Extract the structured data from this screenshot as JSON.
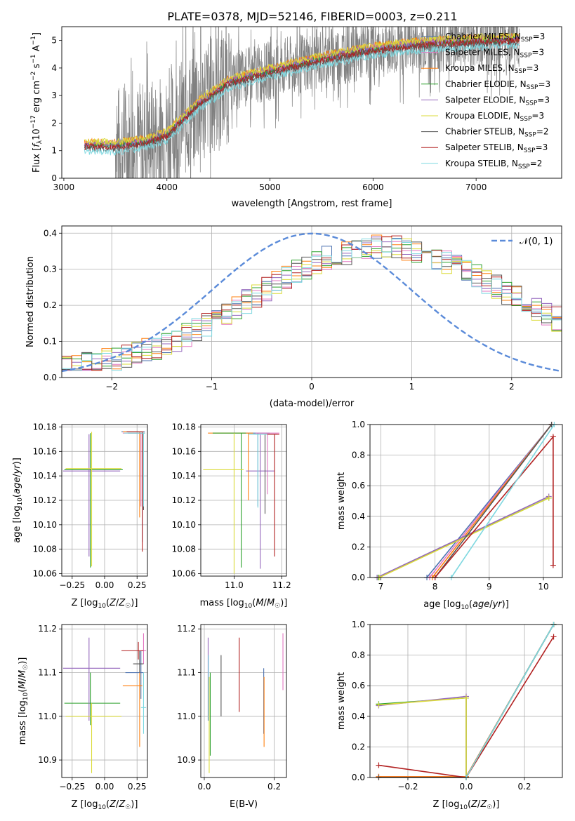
{
  "figure_title": "PLATE=0378, MJD=52146, FIBERID=0003, z=0.211",
  "colors": {
    "Chabrier MILES": "#4c72b0",
    "Salpeter MILES": "#e377c2",
    "Kroupa MILES": "#ff7f0e",
    "Chabrier ELODIE": "#2ca02c",
    "Salpeter ELODIE": "#9467bd",
    "Kroupa ELODIE": "#dbdb3a",
    "Chabrier STELIB": "#555555",
    "Salpeter STELIB": "#b22222",
    "Kroupa STELIB": "#7fd8e0",
    "normal": "#5b8bd9",
    "data": "#808080"
  },
  "chart_data": [
    {
      "id": "spectrum",
      "type": "line",
      "title": "PLATE=0378, MJD=52146, FIBERID=0003, z=0.211",
      "xlabel": "wavelength [Angstrom, rest frame]",
      "ylabel": "Flux [f_λ 10^-17 erg cm^-2 s^-1 A^-1]",
      "xlim": [
        2980,
        7830
      ],
      "ylim": [
        0,
        5.5
      ],
      "xticks": [
        "3000",
        "4000",
        "5000",
        "6000",
        "7000"
      ],
      "yticks": [
        "0",
        "1",
        "2",
        "3",
        "4",
        "5"
      ],
      "legend_position": "top-right",
      "legend": [
        {
          "label": "Chabrier MILES, N",
          "sub": "SSP",
          "suffix": "=3"
        },
        {
          "label": "Salpeter MILES, N",
          "sub": "SSP",
          "suffix": "=3"
        },
        {
          "label": "Kroupa MILES, N",
          "sub": "SSP",
          "suffix": "=3"
        },
        {
          "label": "Chabrier ELODIE, N",
          "sub": "SSP",
          "suffix": "=3"
        },
        {
          "label": "Salpeter ELODIE, N",
          "sub": "SSP",
          "suffix": "=3"
        },
        {
          "label": "Kroupa ELODIE, N",
          "sub": "SSP",
          "suffix": "=3"
        },
        {
          "label": "Chabrier STELIB, N",
          "sub": "SSP",
          "suffix": "=2"
        },
        {
          "label": "Salpeter STELIB, N",
          "sub": "SSP",
          "suffix": "=3"
        },
        {
          "label": "Kroupa STELIB, N",
          "sub": "SSP",
          "suffix": "=2"
        }
      ],
      "data_range": [
        3500,
        7420
      ],
      "model_range": [
        3200,
        7420
      ],
      "continuum": {
        "x": [
          3200,
          3500,
          3800,
          4000,
          4300,
          4600,
          5000,
          5500,
          6000,
          6500,
          7000,
          7400
        ],
        "y": [
          1.2,
          1.2,
          1.35,
          1.6,
          2.7,
          3.5,
          3.9,
          4.35,
          4.7,
          4.9,
          5.0,
          5.05
        ]
      }
    },
    {
      "id": "residuals",
      "type": "line",
      "xlabel": "(data-model)/error",
      "ylabel": "Normed distribution",
      "xlim": [
        -2.5,
        2.5
      ],
      "ylim": [
        0,
        0.42
      ],
      "xticks": [
        "−2",
        "−1",
        "0",
        "1",
        "2"
      ],
      "yticks": [
        "0.0",
        "0.1",
        "0.2",
        "0.3",
        "0.4"
      ],
      "legend_position": "top-right",
      "legend": "𝒩(0, 1)",
      "bins": {
        "start": -2.5,
        "width": 0.1
      },
      "series_envelope": [
        0.033,
        0.035,
        0.038,
        0.042,
        0.046,
        0.052,
        0.058,
        0.066,
        0.075,
        0.084,
        0.094,
        0.105,
        0.117,
        0.13,
        0.145,
        0.16,
        0.176,
        0.193,
        0.21,
        0.228,
        0.245,
        0.262,
        0.278,
        0.293,
        0.307,
        0.32,
        0.331,
        0.34,
        0.348,
        0.354,
        0.358,
        0.36,
        0.36,
        0.358,
        0.355,
        0.35,
        0.343,
        0.334,
        0.323,
        0.311,
        0.298,
        0.283,
        0.268,
        0.252,
        0.236,
        0.22,
        0.205,
        0.19,
        0.176,
        0.162,
        0.15
      ]
    },
    {
      "id": "age-vs-Z",
      "type": "scatter",
      "xlabel": "Z [log10(Z/Z☉)]",
      "ylabel": "age [log10(age/yr)]",
      "xlim": [
        -0.33,
        0.33
      ],
      "ylim": [
        10.058,
        10.182
      ],
      "xticks": [
        "−0.25",
        "0.00",
        "0.25"
      ],
      "yticks": [
        "10.06",
        "10.08",
        "10.10",
        "10.12",
        "10.14",
        "10.16",
        "10.18"
      ],
      "points": [
        {
          "model": "Chabrier MILES",
          "x": 0.29,
          "xerr": [
            0.16,
            0.02
          ],
          "y": 10.176,
          "yerr": [
            0.09,
            0.0
          ]
        },
        {
          "model": "Salpeter MILES",
          "x": 0.28,
          "xerr": [
            0.14,
            0.02
          ],
          "y": 10.175,
          "yerr": [
            0.06,
            0.0
          ]
        },
        {
          "model": "Kroupa MILES",
          "x": 0.27,
          "xerr": [
            0.13,
            0.02
          ],
          "y": 10.176,
          "yerr": [
            0.07,
            0.0
          ]
        },
        {
          "model": "Chabrier ELODIE",
          "x": -0.11,
          "xerr": [
            0.2,
            0.25
          ],
          "y": 10.145,
          "yerr": [
            0.08,
            0.03
          ]
        },
        {
          "model": "Salpeter ELODIE",
          "x": -0.12,
          "xerr": [
            0.2,
            0.24
          ],
          "y": 10.144,
          "yerr": [
            0.07,
            0.03
          ]
        },
        {
          "model": "Kroupa ELODIE",
          "x": -0.1,
          "xerr": [
            0.2,
            0.23
          ],
          "y": 10.146,
          "yerr": [
            0.08,
            0.03
          ]
        },
        {
          "model": "Chabrier STELIB",
          "x": 0.3,
          "xerr": [
            0.12,
            0.01
          ],
          "y": 10.175,
          "yerr": [
            0.063,
            0.0
          ]
        },
        {
          "model": "Salpeter STELIB",
          "x": 0.29,
          "xerr": [
            0.12,
            0.01
          ],
          "y": 10.176,
          "yerr": [
            0.098,
            0.0
          ]
        },
        {
          "model": "Kroupa STELIB",
          "x": 0.3,
          "xerr": [
            0.15,
            0.01
          ],
          "y": 10.175,
          "yerr": [
            0.06,
            0.0
          ]
        }
      ]
    },
    {
      "id": "age-vs-mass",
      "type": "scatter",
      "xlabel": "mass [log10(M/M☉)]",
      "ylabel": "",
      "xlim": [
        10.86,
        11.22
      ],
      "ylim": [
        10.058,
        10.182
      ],
      "xticks": [
        "11.0",
        "11.2"
      ],
      "yticks": [
        "10.06",
        "10.08",
        "10.10",
        "10.12",
        "10.14",
        "10.16",
        "10.18"
      ],
      "points": [
        {
          "model": "Chabrier MILES",
          "x": 11.1,
          "xerr": [
            0.05,
            0.05
          ],
          "y": 10.175,
          "yerr": [
            0.06,
            0.0
          ]
        },
        {
          "model": "Salpeter MILES",
          "x": 11.14,
          "xerr": [
            0.05,
            0.05
          ],
          "y": 10.175,
          "yerr": [
            0.05,
            0.0
          ]
        },
        {
          "model": "Kroupa MILES",
          "x": 11.06,
          "xerr": [
            0.17,
            0.02
          ],
          "y": 10.175,
          "yerr": [
            0.055,
            0.0
          ]
        },
        {
          "model": "Chabrier ELODIE",
          "x": 11.03,
          "xerr": [
            0.12,
            0.02
          ],
          "y": 10.175,
          "yerr": [
            0.11,
            0.0
          ]
        },
        {
          "model": "Salpeter ELODIE",
          "x": 11.11,
          "xerr": [
            0.06,
            0.06
          ],
          "y": 10.144,
          "yerr": [
            0.08,
            0.03
          ]
        },
        {
          "model": "Kroupa ELODIE",
          "x": 11.0,
          "xerr": [
            0.13,
            0.04
          ],
          "y": 10.145,
          "yerr": [
            0.085,
            0.03
          ]
        },
        {
          "model": "Chabrier STELIB",
          "x": 11.13,
          "xerr": [
            0.05,
            0.05
          ],
          "y": 10.174,
          "yerr": [
            0.065,
            0.0
          ]
        },
        {
          "model": "Salpeter STELIB",
          "x": 11.17,
          "xerr": [
            0.04,
            0.02
          ],
          "y": 10.174,
          "yerr": [
            0.1,
            0.0
          ]
        },
        {
          "model": "Kroupa STELIB",
          "x": 11.1,
          "xerr": [
            0.04,
            0.04
          ],
          "y": 10.174,
          "yerr": [
            0.06,
            0.0
          ]
        }
      ]
    },
    {
      "id": "massweight-vs-age",
      "type": "line",
      "xlabel": "age [log10(age/yr)]",
      "ylabel": "mass weight",
      "xlim": [
        6.8,
        10.35
      ],
      "ylim": [
        0,
        1.0
      ],
      "xticks": [
        "7",
        "8",
        "9",
        "10"
      ],
      "yticks": [
        "0.0",
        "0.2",
        "0.4",
        "0.6",
        "0.8",
        "1.0"
      ],
      "series": [
        {
          "model": "Chabrier MILES",
          "x": [
            7.85,
            10.15
          ],
          "y": [
            0.0,
            1.0
          ]
        },
        {
          "model": "Salpeter MILES",
          "x": [
            7.9,
            10.15
          ],
          "y": [
            0.0,
            1.0
          ]
        },
        {
          "model": "Kroupa MILES",
          "x": [
            7.95,
            10.15
          ],
          "y": [
            0.0,
            1.0
          ]
        },
        {
          "model": "Chabrier ELODIE",
          "x": [
            6.95,
            10.1
          ],
          "y": [
            0.0,
            0.52
          ]
        },
        {
          "model": "Salpeter ELODIE",
          "x": [
            6.93,
            10.1
          ],
          "y": [
            0.0,
            0.53
          ]
        },
        {
          "model": "Kroupa ELODIE",
          "x": [
            6.97,
            10.1
          ],
          "y": [
            0.0,
            0.52
          ]
        },
        {
          "model": "Chabrier STELIB",
          "x": [
            8.0,
            10.15
          ],
          "y": [
            0.0,
            1.0
          ]
        },
        {
          "model": "Salpeter STELIB",
          "x": [
            8.0,
            10.18,
            10.18
          ],
          "y": [
            0.0,
            0.92,
            0.08
          ]
        },
        {
          "model": "Kroupa STELIB",
          "x": [
            8.3,
            10.2
          ],
          "y": [
            0.0,
            1.0
          ]
        }
      ]
    },
    {
      "id": "mass-vs-Z",
      "type": "scatter",
      "xlabel": "Z [log10(Z/Z☉)]",
      "ylabel": "mass [log10(M/M☉)]",
      "xlim": [
        -0.33,
        0.33
      ],
      "ylim": [
        10.86,
        11.21
      ],
      "xticks": [
        "−0.25",
        "0.00",
        "0.25"
      ],
      "yticks": [
        "10.9",
        "11.0",
        "11.1",
        "11.2"
      ],
      "points": [
        {
          "model": "Chabrier MILES",
          "x": 0.28,
          "xerr": [
            0.12,
            0.02
          ],
          "y": 11.1,
          "yerr": [
            0.06,
            0.05
          ]
        },
        {
          "model": "Salpeter MILES",
          "x": 0.3,
          "xerr": [
            0.02,
            0.02
          ],
          "y": 11.15,
          "yerr": [
            0.03,
            0.04
          ]
        },
        {
          "model": "Kroupa MILES",
          "x": 0.27,
          "xerr": [
            0.13,
            0.02
          ],
          "y": 11.07,
          "yerr": [
            0.14,
            0.03
          ]
        },
        {
          "model": "Chabrier ELODIE",
          "x": -0.11,
          "xerr": [
            0.2,
            0.23
          ],
          "y": 11.03,
          "yerr": [
            0.05,
            0.07
          ]
        },
        {
          "model": "Salpeter ELODIE",
          "x": -0.12,
          "xerr": [
            0.2,
            0.24
          ],
          "y": 11.11,
          "yerr": [
            0.12,
            0.07
          ]
        },
        {
          "model": "Kroupa ELODIE",
          "x": -0.1,
          "xerr": [
            0.2,
            0.23
          ],
          "y": 11.0,
          "yerr": [
            0.13,
            0.03
          ]
        },
        {
          "model": "Chabrier STELIB",
          "x": 0.27,
          "xerr": [
            0.05,
            0.03
          ],
          "y": 11.12,
          "yerr": [
            0.02,
            0.03
          ]
        },
        {
          "model": "Salpeter STELIB",
          "x": 0.26,
          "xerr": [
            0.13,
            0.04
          ],
          "y": 11.15,
          "yerr": [
            0.02,
            0.02
          ]
        },
        {
          "model": "Kroupa STELIB",
          "x": 0.3,
          "xerr": [
            0.02,
            0.02
          ],
          "y": 11.02,
          "yerr": [
            0.06,
            0.08
          ]
        }
      ]
    },
    {
      "id": "mass-vs-ebv",
      "type": "scatter",
      "xlabel": "E(B-V)",
      "ylabel": "",
      "xlim": [
        -0.01,
        0.235
      ],
      "ylim": [
        10.86,
        11.21
      ],
      "xticks": [
        "0.0",
        "0.2"
      ],
      "yticks": [
        "10.9",
        "11.0",
        "11.1",
        "11.2"
      ],
      "points": [
        {
          "model": "Chabrier MILES",
          "x": 0.17,
          "y": 11.06,
          "yerr": [
            0.1,
            0.05
          ]
        },
        {
          "model": "Salpeter MILES",
          "x": 0.225,
          "y": 11.13,
          "yerr": [
            0.07,
            0.06
          ]
        },
        {
          "model": "Kroupa MILES",
          "x": 0.171,
          "y": 11.03,
          "yerr": [
            0.1,
            0.06
          ]
        },
        {
          "model": "Chabrier ELODIE",
          "x": 0.017,
          "y": 11.01,
          "yerr": [
            0.1,
            0.09
          ]
        },
        {
          "model": "Salpeter ELODIE",
          "x": 0.011,
          "y": 11.07,
          "yerr": [
            0.08,
            0.11
          ]
        },
        {
          "model": "Kroupa ELODIE",
          "x": 0.014,
          "y": 11.0,
          "yerr": [
            0.13,
            0.09
          ]
        },
        {
          "model": "Chabrier STELIB",
          "x": 0.048,
          "y": 11.07,
          "yerr": [
            0.07,
            0.07
          ]
        },
        {
          "model": "Salpeter STELIB",
          "x": 0.1,
          "y": 11.1,
          "yerr": [
            0.09,
            0.08
          ]
        },
        {
          "model": "Kroupa STELIB",
          "x": 0.012,
          "y": 11.05,
          "yerr": [
            0.06,
            0.09
          ]
        }
      ]
    },
    {
      "id": "massweight-vs-Z",
      "type": "line",
      "xlabel": "Z [log10(Z/Z☉)]",
      "ylabel": "mass weight",
      "xlim": [
        -0.33,
        0.33
      ],
      "ylim": [
        0,
        1.0
      ],
      "xticks": [
        "−0.2",
        "0.0",
        "0.2"
      ],
      "yticks": [
        "0.0",
        "0.2",
        "0.4",
        "0.6",
        "0.8",
        "1.0"
      ],
      "series": [
        {
          "model": "Chabrier MILES",
          "x": [
            -0.3,
            0.0,
            0.3
          ],
          "y": [
            0.005,
            0.005,
            1.0
          ]
        },
        {
          "model": "Salpeter MILES",
          "x": [
            -0.3,
            0.0,
            0.3
          ],
          "y": [
            0.005,
            0.005,
            1.0
          ]
        },
        {
          "model": "Kroupa MILES",
          "x": [
            -0.3,
            0.0,
            0.3
          ],
          "y": [
            0.005,
            0.005,
            1.0
          ]
        },
        {
          "model": "Chabrier ELODIE",
          "x": [
            -0.3,
            0.0,
            0.0,
            0.3
          ],
          "y": [
            0.48,
            0.52,
            0.0,
            1.0
          ]
        },
        {
          "model": "Salpeter ELODIE",
          "x": [
            -0.3,
            0.0,
            0.0
          ],
          "y": [
            0.47,
            0.53,
            0.0
          ]
        },
        {
          "model": "Kroupa ELODIE",
          "x": [
            -0.3,
            0.0,
            0.0
          ],
          "y": [
            0.475,
            0.52,
            0.0
          ]
        },
        {
          "model": "Chabrier STELIB",
          "x": [
            -0.3,
            0.0,
            0.3
          ],
          "y": [
            0.0,
            0.0,
            1.0
          ]
        },
        {
          "model": "Salpeter STELIB",
          "x": [
            -0.3,
            0.0,
            0.3
          ],
          "y": [
            0.08,
            0.0,
            0.92
          ]
        },
        {
          "model": "Kroupa STELIB",
          "x": [
            0.0,
            0.3
          ],
          "y": [
            0.0,
            1.0
          ]
        }
      ]
    }
  ]
}
